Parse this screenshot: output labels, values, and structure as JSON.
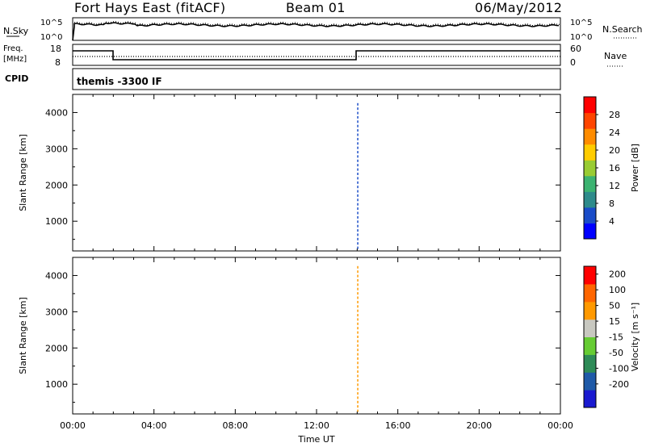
{
  "header": {
    "radar": "Fort Hays East (fitACF)",
    "beam": "Beam 01",
    "date": "06/May/2012"
  },
  "top_panels": {
    "nsky_label": "N.Sky",
    "nsearch_label": "N.Search",
    "nsky_ticks": [
      "10^5",
      "10^0"
    ],
    "freq_label": [
      "Freq.",
      "[MHz]"
    ],
    "freq_ticks": [
      "18",
      "8"
    ],
    "nave_ticks": [
      "60",
      "0"
    ],
    "nave_label": "Nave",
    "cpid_label": "CPID",
    "cpid_value": "themis -3300 IF"
  },
  "chart_data": [
    {
      "type": "heatmap",
      "name": "Power",
      "xlabel": "",
      "ylabel": "Slant Range [km]",
      "x_ticks": [
        "00:00",
        "04:00",
        "08:00",
        "12:00",
        "16:00",
        "20:00",
        "00:00"
      ],
      "y_ticks": [
        "1000",
        "2000",
        "3000",
        "4000"
      ],
      "ylim": [
        180,
        4500
      ],
      "colorbar_label": "Power [dB]",
      "colorbar_ticks": [
        "28",
        "24",
        "20",
        "16",
        "12",
        "8",
        "4"
      ],
      "colorscale": [
        "#0000ff",
        "#1a4cc8",
        "#2e8b8b",
        "#3cb371",
        "#99cc33",
        "#ffcc00",
        "#ff8c00",
        "#ff4500",
        "#ff0000"
      ]
    },
    {
      "type": "heatmap",
      "name": "Velocity",
      "xlabel": "Time UT",
      "ylabel": "Slant Range [km]",
      "x_ticks": [
        "00:00",
        "04:00",
        "08:00",
        "12:00",
        "16:00",
        "20:00",
        "00:00"
      ],
      "y_ticks": [
        "1000",
        "2000",
        "3000",
        "4000"
      ],
      "ylim": [
        180,
        4500
      ],
      "colorbar_label": "Velocity [m s⁻¹]",
      "colorbar_ticks": [
        "200",
        "100",
        "50",
        "15",
        "-15",
        "-50",
        "-100",
        "-200"
      ],
      "colorscale": [
        "#1a1ad0",
        "#1f5aa8",
        "#2e8b57",
        "#66cc33",
        "#c8c8c0",
        "#ff9900",
        "#ff6600",
        "#ff0000"
      ]
    }
  ]
}
